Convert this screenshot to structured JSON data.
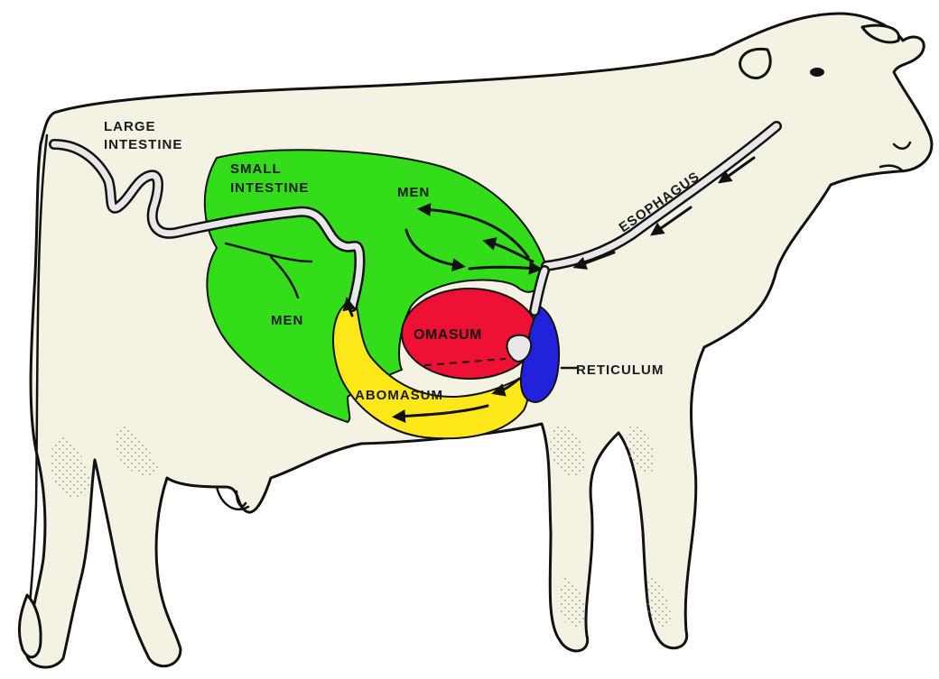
{
  "diagram": {
    "labels": {
      "large_intestine_1": "LARGE",
      "large_intestine_2": "INTESTINE",
      "small_intestine_1": "SMALL",
      "small_intestine_2": "INTESTINE",
      "rumen_upper": "MEN",
      "rumen_lower": "MEN",
      "esophagus": "ESOPHAGUS",
      "omasum": "OMASUM",
      "reticulum": "RETICULUM",
      "abomasum": "ABOMASUM"
    },
    "colors": {
      "body": "#f4f2e3",
      "rumen": "#33dd1a",
      "omasum": "#ee1133",
      "abomasum": "#ffe81a",
      "reticulum": "#2222dd",
      "outline": "#111111"
    }
  }
}
